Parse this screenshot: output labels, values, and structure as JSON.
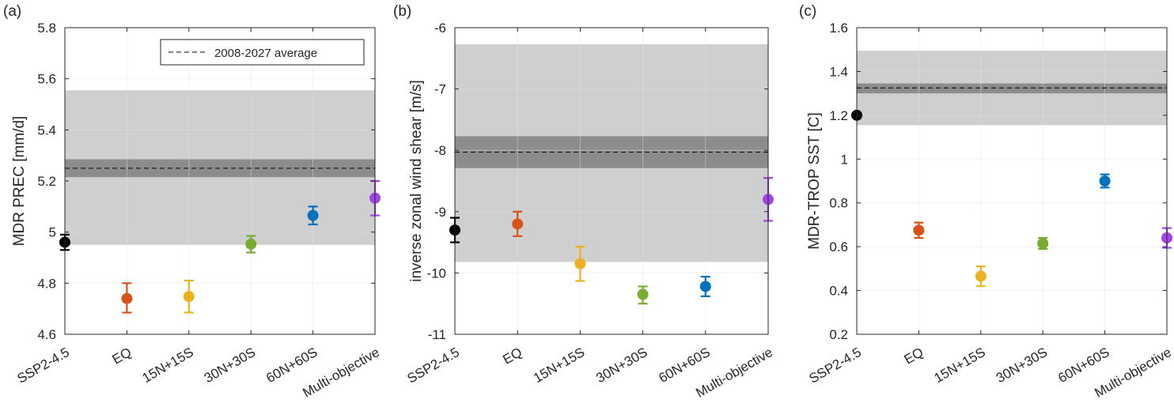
{
  "colors": {
    "band_outer": "#cfcfcf",
    "band_inner": "#8c8c8c",
    "grid": "#e2e2e2",
    "axis": "#262626",
    "mean_line": "#000000"
  },
  "legend": {
    "label": "2008-2027 average",
    "location": "top-right"
  },
  "chart_data": [
    {
      "type": "scatter",
      "panel_label": "(a)",
      "ylabel": "MDR PREC [mm/d]",
      "ylim": [
        4.6,
        5.8
      ],
      "yticks": [
        4.6,
        4.8,
        5,
        5.2,
        5.4,
        5.6,
        5.8
      ],
      "ytick_labels": [
        "4.6",
        "4.8",
        "5",
        "5.2",
        "5.4",
        "5.6",
        "5.8"
      ],
      "categories": [
        "SSP2-4.5",
        "EQ",
        "15N+15S",
        "30N+30S",
        "60N+60S",
        "Multi-objective"
      ],
      "reference": {
        "mean": 5.25,
        "outer_band": [
          4.95,
          5.555
        ],
        "inner_band": [
          5.215,
          5.285
        ]
      },
      "show_legend": true,
      "series": [
        {
          "name": "SSP2-4.5",
          "color": "#000000",
          "value": 4.96,
          "err_low": 4.93,
          "err_high": 4.99
        },
        {
          "name": "EQ",
          "color": "#d95319",
          "value": 4.74,
          "err_low": 4.685,
          "err_high": 4.8
        },
        {
          "name": "15N+15S",
          "color": "#edb120",
          "value": 4.748,
          "err_low": 4.685,
          "err_high": 4.81
        },
        {
          "name": "30N+30S",
          "color": "#77ac30",
          "value": 4.953,
          "err_low": 4.92,
          "err_high": 4.985
        },
        {
          "name": "60N+60S",
          "color": "#0072bd",
          "value": 5.065,
          "err_low": 5.03,
          "err_high": 5.1
        },
        {
          "name": "Multi-objective",
          "color": "#a044e8",
          "value": 5.133,
          "err_low": 5.065,
          "err_high": 5.2
        }
      ]
    },
    {
      "type": "scatter",
      "panel_label": "(b)",
      "ylabel": "inverse zonal wind shear [m/s]",
      "ylim": [
        -11,
        -6
      ],
      "yticks": [
        -11,
        -10,
        -9,
        -8,
        -7,
        -6
      ],
      "ytick_labels": [
        "-11",
        "-10",
        "-9",
        "-8",
        "-7",
        "-6"
      ],
      "categories": [
        "SSP2-4.5",
        "EQ",
        "15N+15S",
        "30N+30S",
        "60N+60S",
        "Multi-objective"
      ],
      "reference": {
        "mean": -8.03,
        "outer_band": [
          -9.82,
          -6.27
        ],
        "inner_band": [
          -8.29,
          -7.77
        ]
      },
      "show_legend": false,
      "series": [
        {
          "name": "SSP2-4.5",
          "color": "#000000",
          "value": -9.3,
          "err_low": -9.5,
          "err_high": -9.1
        },
        {
          "name": "EQ",
          "color": "#d95319",
          "value": -9.2,
          "err_low": -9.4,
          "err_high": -9.0
        },
        {
          "name": "15N+15S",
          "color": "#edb120",
          "value": -9.85,
          "err_low": -10.13,
          "err_high": -9.57
        },
        {
          "name": "30N+30S",
          "color": "#77ac30",
          "value": -10.35,
          "err_low": -10.5,
          "err_high": -10.22
        },
        {
          "name": "60N+60S",
          "color": "#0072bd",
          "value": -10.22,
          "err_low": -10.38,
          "err_high": -10.06
        },
        {
          "name": "Multi-objective",
          "color": "#a044e8",
          "value": -8.8,
          "err_low": -9.15,
          "err_high": -8.45
        }
      ]
    },
    {
      "type": "scatter",
      "panel_label": "(c)",
      "ylabel": "MDR-TROP SST [C]",
      "ylim": [
        0.2,
        1.6
      ],
      "yticks": [
        0.2,
        0.4,
        0.6,
        0.8,
        1,
        1.2,
        1.4,
        1.6
      ],
      "ytick_labels": [
        "0.2",
        "0.4",
        "0.6",
        "0.8",
        "1",
        "1.2",
        "1.4",
        "1.6"
      ],
      "categories": [
        "SSP2-4.5",
        "EQ",
        "15N+15S",
        "30N+30S",
        "60N+60S",
        "Multi-objective"
      ],
      "reference": {
        "mean": 1.325,
        "outer_band": [
          1.155,
          1.495
        ],
        "inner_band": [
          1.3,
          1.345
        ]
      },
      "show_legend": false,
      "series": [
        {
          "name": "SSP2-4.5",
          "color": "#000000",
          "value": 1.2,
          "err_low": 1.19,
          "err_high": 1.21
        },
        {
          "name": "EQ",
          "color": "#d95319",
          "value": 0.675,
          "err_low": 0.64,
          "err_high": 0.71
        },
        {
          "name": "15N+15S",
          "color": "#edb120",
          "value": 0.465,
          "err_low": 0.42,
          "err_high": 0.51
        },
        {
          "name": "30N+30S",
          "color": "#77ac30",
          "value": 0.615,
          "err_low": 0.59,
          "err_high": 0.64
        },
        {
          "name": "60N+60S",
          "color": "#0072bd",
          "value": 0.9,
          "err_low": 0.87,
          "err_high": 0.93
        },
        {
          "name": "Multi-objective",
          "color": "#a044e8",
          "value": 0.64,
          "err_low": 0.595,
          "err_high": 0.685
        }
      ]
    }
  ]
}
